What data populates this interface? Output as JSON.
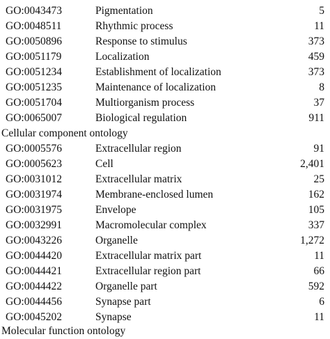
{
  "table": {
    "bio_rows": [
      {
        "go": "GO:0043473",
        "term": "Pigmentation",
        "count": "5"
      },
      {
        "go": "GO:0048511",
        "term": "Rhythmic process",
        "count": "11"
      },
      {
        "go": "GO:0050896",
        "term": "Response to stimulus",
        "count": "373"
      },
      {
        "go": "GO:0051179",
        "term": "Localization",
        "count": "459"
      },
      {
        "go": "GO:0051234",
        "term": "Establishment of localization",
        "count": "373"
      },
      {
        "go": "GO:0051235",
        "term": "Maintenance of localization",
        "count": "8"
      },
      {
        "go": "GO:0051704",
        "term": "Multiorganism process",
        "count": "37"
      },
      {
        "go": "GO:0065007",
        "term": "Biological regulation",
        "count": "911"
      }
    ],
    "cellular_heading": "Cellular component ontology",
    "cellular_rows": [
      {
        "go": "GO:0005576",
        "term": "Extracellular region",
        "count": "91"
      },
      {
        "go": "GO:0005623",
        "term": "Cell",
        "count": "2,401"
      },
      {
        "go": "GO:0031012",
        "term": "Extracellular matrix",
        "count": "25"
      },
      {
        "go": "GO:0031974",
        "term": "Membrane-enclosed lumen",
        "count": "162"
      },
      {
        "go": "GO:0031975",
        "term": "Envelope",
        "count": "105"
      },
      {
        "go": "GO:0032991",
        "term": "Macromolecular complex",
        "count": "337"
      },
      {
        "go": "GO:0043226",
        "term": "Organelle",
        "count": "1,272"
      },
      {
        "go": "GO:0044420",
        "term": "Extracellular matrix part",
        "count": "11"
      },
      {
        "go": "GO:0044421",
        "term": "Extracellular region part",
        "count": "66"
      },
      {
        "go": "GO:0044422",
        "term": "Organelle part",
        "count": "592"
      },
      {
        "go": "GO:0044456",
        "term": "Synapse part",
        "count": "6"
      },
      {
        "go": "GO:0045202",
        "term": "Synapse",
        "count": "11"
      }
    ],
    "molecular_heading": "Molecular function ontology"
  }
}
